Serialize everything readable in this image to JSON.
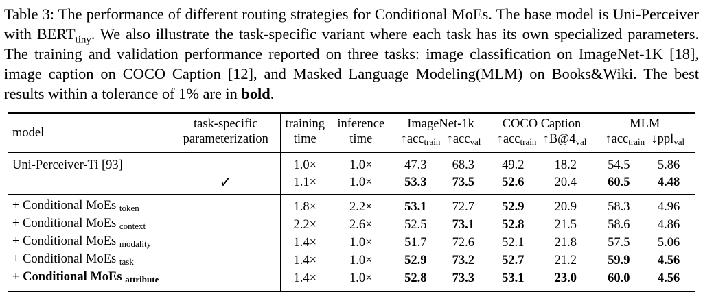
{
  "caption": {
    "p1": "Table 3: The performance of different routing strategies for Conditional MoEs. The base model is Uni-Perceiver with BERT",
    "p1_sub": "tiny",
    "p2": ". We also illustrate the task-specific variant where each task has its own specialized parameters. The training and validation performance reported on three tasks: image classification on ImageNet-1K [18], image caption on COCO Caption [12], and Masked Language Modeling(MLM) on Books&Wiki. The best results within a tolerance of 1% are in ",
    "bold_word": "bold",
    "end": "."
  },
  "header": {
    "model": "model",
    "ts1": "task-specific",
    "ts2": "parameterization",
    "tr1": "training",
    "tr2": "time",
    "in1": "inference",
    "in2": "time",
    "imagenet": "ImageNet-1k",
    "coco": "COCO Caption",
    "mlm": "MLM",
    "sub": [
      {
        "pre": "↑acc",
        "sub": "train"
      },
      {
        "pre": "↑acc",
        "sub": "val"
      },
      {
        "pre": "↑acc",
        "sub": "train"
      },
      {
        "pre": "↑B@4",
        "sub": "val"
      },
      {
        "pre": "↑acc",
        "sub": "train"
      },
      {
        "pre": "↓ppl",
        "sub": "val"
      }
    ]
  },
  "group1": {
    "model": "Uni-Perceiver-Ti [93]",
    "check": "✓",
    "rows": [
      {
        "train_time": "1.0×",
        "infer_time": "1.0×",
        "v": [
          "47.3",
          "68.3",
          "49.2",
          "18.2",
          "54.5",
          "5.86"
        ]
      },
      {
        "train_time": "1.1×",
        "infer_time": "1.0×",
        "v": [
          "53.3",
          "73.5",
          "52.6",
          "20.4",
          "60.5",
          "4.48"
        ]
      }
    ]
  },
  "group2": [
    {
      "name": "+ Conditional MoEs",
      "sub": "token",
      "train_time": "1.8×",
      "infer_time": "2.2×",
      "v": [
        "53.1",
        "72.7",
        "52.9",
        "20.9",
        "58.3",
        "4.96"
      ]
    },
    {
      "name": "+ Conditional MoEs",
      "sub": "context",
      "train_time": "2.2×",
      "infer_time": "2.6×",
      "v": [
        "52.5",
        "73.1",
        "52.8",
        "21.5",
        "58.6",
        "4.86"
      ]
    },
    {
      "name": "+ Conditional MoEs",
      "sub": "modality",
      "train_time": "1.4×",
      "infer_time": "1.0×",
      "v": [
        "51.7",
        "72.6",
        "52.1",
        "21.8",
        "57.5",
        "5.06"
      ]
    },
    {
      "name": "+ Conditional MoEs",
      "sub": "task",
      "train_time": "1.4×",
      "infer_time": "1.0×",
      "v": [
        "52.9",
        "73.2",
        "52.7",
        "21.2",
        "59.9",
        "4.56"
      ]
    },
    {
      "name": "+ Conditional MoEs",
      "sub": "attribute",
      "train_time": "1.4×",
      "infer_time": "1.0×",
      "v": [
        "52.8",
        "73.3",
        "53.1",
        "23.0",
        "60.0",
        "4.56"
      ]
    }
  ]
}
